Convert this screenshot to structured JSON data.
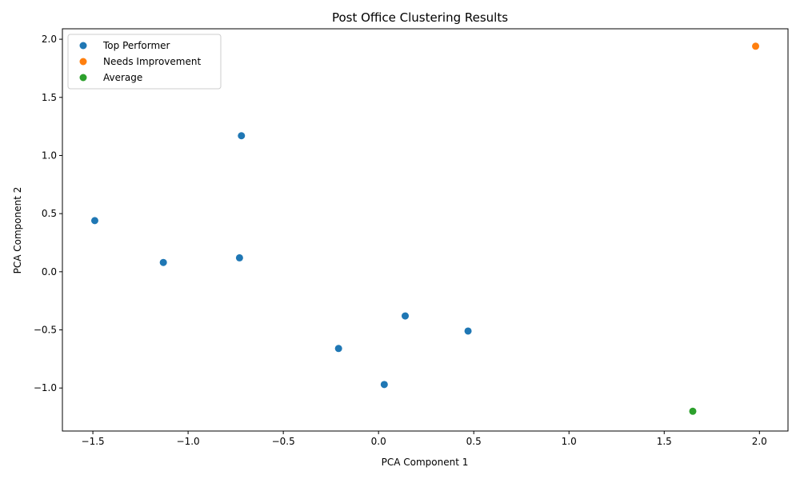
{
  "chart_data": {
    "type": "scatter",
    "title": "Post Office Clustering Results",
    "xlabel": "PCA Component 1",
    "ylabel": "PCA Component 2",
    "xlim": [
      -1.66,
      2.15
    ],
    "ylim": [
      -1.37,
      2.09
    ],
    "xticks": [
      -1.5,
      -1.0,
      -0.5,
      0.0,
      0.5,
      1.0,
      1.5,
      2.0
    ],
    "xtick_labels": [
      "−1.5",
      "−1.0",
      "−0.5",
      "0.0",
      "0.5",
      "1.0",
      "1.5",
      "2.0"
    ],
    "yticks": [
      -1.0,
      -0.5,
      0.0,
      0.5,
      1.0,
      1.5,
      2.0
    ],
    "ytick_labels": [
      "−1.0",
      "−0.5",
      "0.0",
      "0.5",
      "1.0",
      "1.5",
      "2.0"
    ],
    "grid": false,
    "legend_position": "top-left",
    "series": [
      {
        "name": "Top Performer",
        "color": "#1f77b4",
        "points": [
          {
            "x": -0.72,
            "y": 1.17
          },
          {
            "x": -1.49,
            "y": 0.44
          },
          {
            "x": -1.13,
            "y": 0.08
          },
          {
            "x": -0.73,
            "y": 0.12
          },
          {
            "x": 0.14,
            "y": -0.38
          },
          {
            "x": 0.47,
            "y": -0.51
          },
          {
            "x": -0.21,
            "y": -0.66
          },
          {
            "x": 0.03,
            "y": -0.97
          }
        ]
      },
      {
        "name": "Needs Improvement",
        "color": "#ff7f0e",
        "points": [
          {
            "x": 1.98,
            "y": 1.94
          }
        ]
      },
      {
        "name": "Average",
        "color": "#2ca02c",
        "points": [
          {
            "x": 1.65,
            "y": -1.2
          }
        ]
      }
    ]
  }
}
